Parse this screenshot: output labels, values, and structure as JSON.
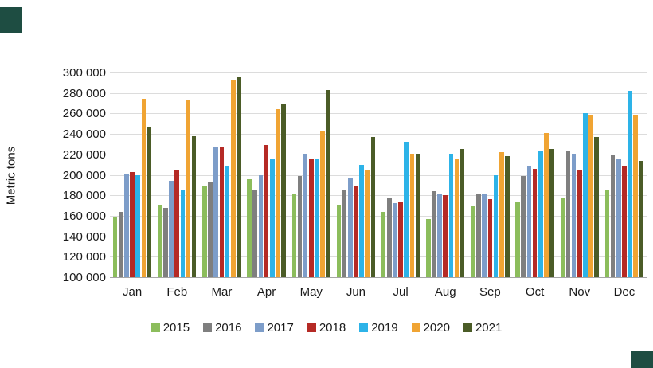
{
  "decorations": {
    "top_left_square_color": "#1e4d42",
    "bottom_right_square_color": "#1e4d42"
  },
  "chart_data": {
    "type": "bar",
    "title": "",
    "ylabel": "Metric tons",
    "xlabel": "",
    "grid": true,
    "legend_position": "bottom",
    "y_axis": {
      "min": 100000,
      "max": 300000,
      "step": 20000,
      "tick_labels": [
        "100 000",
        "120 000",
        "140 000",
        "160 000",
        "180 000",
        "200 000",
        "220 000",
        "240 000",
        "260 000",
        "280 000",
        "300 000"
      ]
    },
    "categories": [
      "Jan",
      "Feb",
      "Mar",
      "Apr",
      "May",
      "Jun",
      "Jul",
      "Aug",
      "Sep",
      "Oct",
      "Nov",
      "Dec"
    ],
    "series": [
      {
        "name": "2015",
        "color": "#8cbd5c",
        "values": [
          158000,
          171000,
          189000,
          196000,
          181000,
          171000,
          164000,
          157000,
          169000,
          174000,
          178000,
          185000
        ]
      },
      {
        "name": "2016",
        "color": "#7f7f7f",
        "values": [
          164000,
          168000,
          193000,
          185000,
          199000,
          185000,
          178000,
          184000,
          182000,
          199000,
          224000,
          220000
        ]
      },
      {
        "name": "2017",
        "color": "#7d9dc9",
        "values": [
          201000,
          194000,
          228000,
          200000,
          221000,
          197000,
          172000,
          182000,
          181000,
          209000,
          221000,
          216000
        ]
      },
      {
        "name": "2018",
        "color": "#b52a25",
        "values": [
          203000,
          204000,
          227000,
          229000,
          216000,
          189000,
          174000,
          180000,
          176000,
          206000,
          204000,
          208000
        ]
      },
      {
        "name": "2019",
        "color": "#2db3e8",
        "values": [
          200000,
          185000,
          209000,
          215000,
          216000,
          210000,
          232000,
          221000,
          200000,
          223000,
          260000,
          282000
        ]
      },
      {
        "name": "2020",
        "color": "#f0a433",
        "values": [
          274000,
          273000,
          292000,
          264000,
          243000,
          204000,
          221000,
          216000,
          222000,
          241000,
          259000,
          259000
        ]
      },
      {
        "name": "2021",
        "color": "#4b5c27",
        "values": [
          247000,
          238000,
          295000,
          269000,
          283000,
          237000,
          221000,
          225000,
          218000,
          225000,
          237000,
          214000
        ]
      }
    ],
    "colors": {
      "gridline": "#dcdcdc",
      "axis_line": "#a6a6a6",
      "text": "#1a1a1a"
    }
  }
}
